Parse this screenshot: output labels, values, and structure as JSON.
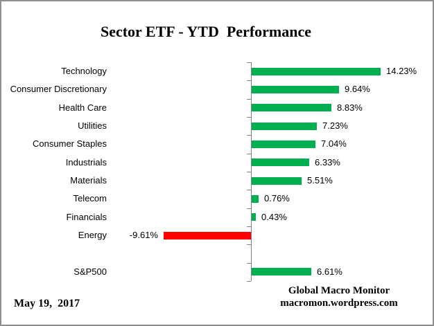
{
  "title": "Sector ETF - YTD  Performance",
  "footer": {
    "date_label": "May 19,  2017",
    "attribution_line1": "Global Macro Monitor",
    "attribution_line2": "macromon.wordpress.com"
  },
  "colors": {
    "positive_bar": "#00B050",
    "negative_bar": "#FF0000",
    "axis": "#808080",
    "text": "#000000",
    "frame_border": "#8E8E8E",
    "background": "#FFFFFF"
  },
  "chart_data": {
    "type": "bar",
    "orientation": "horizontal",
    "title": "Sector ETF - YTD  Performance",
    "xlabel": "",
    "ylabel": "",
    "value_unit": "percent",
    "grid": false,
    "legend": false,
    "axis_ticks": "category-boundaries",
    "categories": [
      "Technology",
      "Consumer Discretionary",
      "Health Care",
      "Utilities",
      "Consumer Staples",
      "Industrials",
      "Materials",
      "Telecom",
      "Financials",
      "Energy",
      "",
      "S&P500"
    ],
    "values": [
      14.23,
      9.64,
      8.83,
      7.23,
      7.04,
      6.33,
      5.51,
      0.76,
      0.43,
      -9.61,
      null,
      6.61
    ],
    "rows": [
      {
        "label": "Technology",
        "value": 14.23,
        "display": "14.23%"
      },
      {
        "label": "Consumer Discretionary",
        "value": 9.64,
        "display": "9.64%"
      },
      {
        "label": "Health Care",
        "value": 8.83,
        "display": "8.83%"
      },
      {
        "label": "Utilities",
        "value": 7.23,
        "display": "7.23%"
      },
      {
        "label": "Consumer Staples",
        "value": 7.04,
        "display": "7.04%"
      },
      {
        "label": "Industrials",
        "value": 6.33,
        "display": "6.33%"
      },
      {
        "label": "Materials",
        "value": 5.51,
        "display": "5.51%"
      },
      {
        "label": "Telecom",
        "value": 0.76,
        "display": "0.76%"
      },
      {
        "label": "Financials",
        "value": 0.43,
        "display": "0.43%"
      },
      {
        "label": "Energy",
        "value": -9.61,
        "display": "-9.61%"
      },
      {
        "label": "",
        "value": null,
        "display": ""
      },
      {
        "label": "S&P500",
        "value": 6.61,
        "display": "6.61%"
      }
    ]
  }
}
